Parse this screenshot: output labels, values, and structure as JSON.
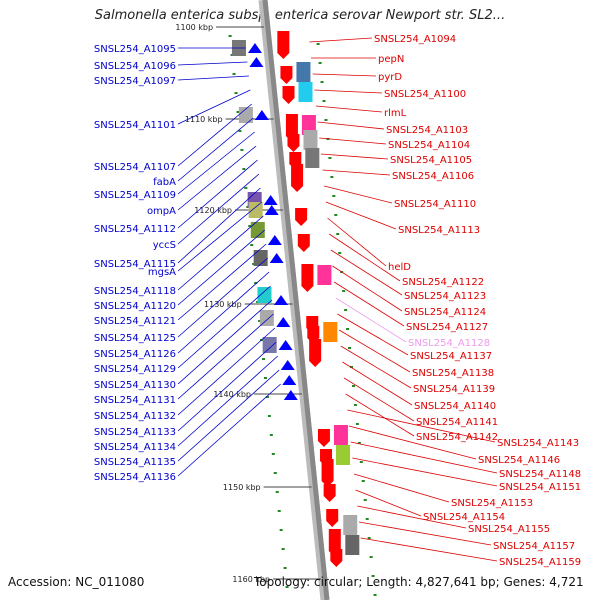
{
  "title": "Salmonella enterica subsp. enterica serovar Newport str. SL2...",
  "accession": "Accession: NC_011080",
  "topology": "Topology: circular; Length: 4,827,641 bp; Genes: 4,721",
  "scale_labels": [
    "1100 kbp",
    "1110 kbp",
    "1120 kbp",
    "1130 kbp",
    "1140 kbp",
    "1150 kbp",
    "1160 kbp"
  ],
  "left_genes": [
    "SNSL254_A1095",
    "SNSL254_A1096",
    "SNSL254_A1097",
    "SNSL254_A1101",
    "SNSL254_A1107",
    "fabA",
    "SNSL254_A1109",
    "ompA",
    "SNSL254_A1112",
    "yccS",
    "SNSL254_A1115",
    "mgsA",
    "SNSL254_A1118",
    "SNSL254_A1120",
    "SNSL254_A1121",
    "SNSL254_A1125",
    "SNSL254_A1126",
    "SNSL254_A1129",
    "SNSL254_A1130",
    "SNSL254_A1131",
    "SNSL254_A1132",
    "SNSL254_A1133",
    "SNSL254_A1134",
    "SNSL254_A1135",
    "SNSL254_A1136"
  ],
  "right_genes": [
    "SNSL254_A1094",
    "pepN",
    "pyrD",
    "SNSL254_A1100",
    "rlmL",
    "SNSL254_A1103",
    "SNSL254_A1104",
    "SNSL254_A1105",
    "SNSL254_A1106",
    "SNSL254_A1110",
    "SNSL254_A1113",
    "helD",
    "SNSL254_A1122",
    "SNSL254_A1123",
    "SNSL254_A1124",
    "SNSL254_A1127",
    "SNSL254_A1128",
    "SNSL254_A1137",
    "SNSL254_A1138",
    "SNSL254_A1139",
    "SNSL254_A1140",
    "SNSL254_A1141",
    "SNSL254_A1142",
    "SNSL254_A1143",
    "SNSL254_A1146",
    "SNSL254_A1148",
    "SNSL254_A1151",
    "SNSL254_A1153",
    "SNSL254_A1154",
    "SNSL254_A1155",
    "SNSL254_A1157",
    "SNSL254_A1159"
  ],
  "colors": {
    "forward_strand": "#ff0000",
    "reverse_strand": "#0000ff",
    "highlight": "#ee99ee",
    "backbone": "#888888",
    "tick": "#228822"
  }
}
